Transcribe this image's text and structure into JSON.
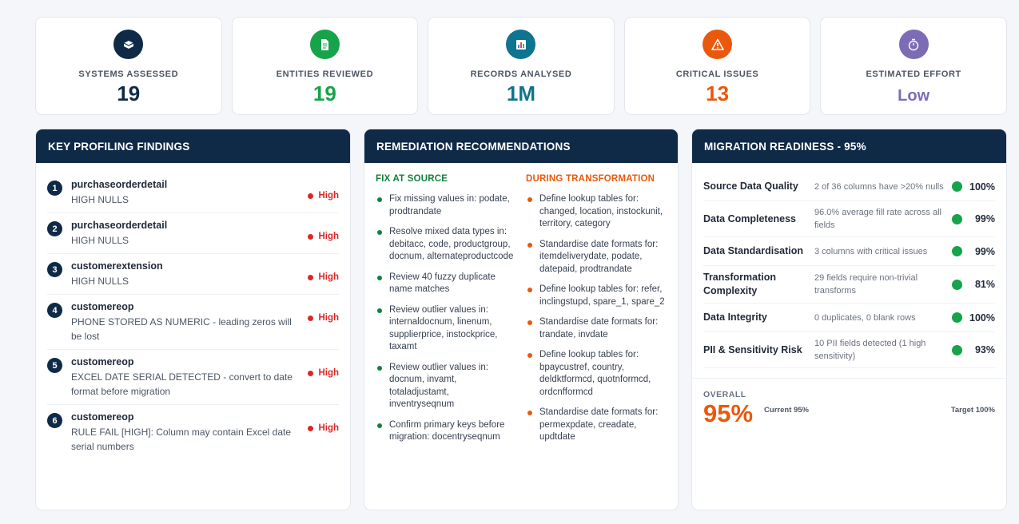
{
  "kpis": [
    {
      "label": "SYSTEMS ASSESSED",
      "value": "19",
      "color": "#0f2a47",
      "icon": "box-icon",
      "icon_bg": "#0f2a47"
    },
    {
      "label": "ENTITIES REVIEWED",
      "value": "19",
      "color": "#16a34a",
      "icon": "document-icon",
      "icon_bg": "#16a34a"
    },
    {
      "label": "RECORDS ANALYSED",
      "value": "1M",
      "color": "#0e7490",
      "icon": "bar-chart-icon",
      "icon_bg": "#0e7490"
    },
    {
      "label": "CRITICAL ISSUES",
      "value": "13",
      "color": "#ea580c",
      "icon": "warning-icon",
      "icon_bg": "#ea580c"
    },
    {
      "label": "ESTIMATED EFFORT",
      "value": "Low",
      "color": "#7c6bb5",
      "icon": "stopwatch-icon",
      "icon_bg": "#7c6bb5"
    }
  ],
  "findings": {
    "title": "KEY PROFILING FINDINGS",
    "items": [
      {
        "num": "1",
        "title": "purchaseorderdetail",
        "desc": "HIGH NULLS",
        "severity": "High"
      },
      {
        "num": "2",
        "title": "purchaseorderdetail",
        "desc": "HIGH NULLS",
        "severity": "High"
      },
      {
        "num": "3",
        "title": "customerextension",
        "desc": "HIGH NULLS",
        "severity": "High"
      },
      {
        "num": "4",
        "title": "customereop",
        "desc": "PHONE STORED AS NUMERIC - leading zeros will be lost",
        "severity": "High"
      },
      {
        "num": "5",
        "title": "customereop",
        "desc": "EXCEL DATE SERIAL DETECTED - convert to date format before migration",
        "severity": "High"
      },
      {
        "num": "6",
        "title": "customereop",
        "desc": "RULE FAIL [HIGH]: Column may contain Excel date serial numbers",
        "severity": "High"
      }
    ]
  },
  "remediation": {
    "title": "REMEDIATION RECOMMENDATIONS",
    "fix_at_source": {
      "heading": "FIX AT SOURCE",
      "color": "#15803d",
      "items": [
        "Fix missing values in: podate, prodtrandate",
        "Resolve mixed data types in: debitacc, code, productgroup, docnum, alternateproductcode",
        "Review 40 fuzzy duplicate name matches",
        "Review outlier values in: internaldocnum, linenum, supplierprice, instockprice, taxamt",
        "Review outlier values in: docnum, invamt, totaladjustamt, inventryseqnum",
        "Confirm primary keys before migration: docentryseqnum"
      ]
    },
    "during_transformation": {
      "heading": "DURING TRANSFORMATION",
      "color": "#ea580c",
      "items": [
        "Define lookup tables for: changed, location, instockunit, territory, category",
        "Standardise date formats for: itemdeliverydate, podate, datepaid, prodtrandate",
        "Define lookup tables for: refer, inclingstupd, spare_1, spare_2",
        "Standardise date formats for: trandate, invdate",
        "Define lookup tables for: bpaycustref, country, deldktformcd, quotnformcd, ordcnfformcd",
        "Standardise date formats for: permexpdate, creadate, updtdate"
      ]
    }
  },
  "readiness": {
    "title": "MIGRATION READINESS - 95%",
    "rows": [
      {
        "name": "Source Data Quality",
        "desc": "2 of 36 columns have >20% nulls",
        "pct": "100%"
      },
      {
        "name": "Data Completeness",
        "desc": "96.0% average fill rate across all fields",
        "pct": "99%"
      },
      {
        "name": "Data Standardisation",
        "desc": "3 columns with critical issues",
        "pct": "99%"
      },
      {
        "name": "Transformation Complexity",
        "desc": "29 fields require non-trivial transforms",
        "pct": "81%"
      },
      {
        "name": "Data Integrity",
        "desc": "0 duplicates, 0 blank rows",
        "pct": "100%"
      },
      {
        "name": "PII & Sensitivity Risk",
        "desc": "10 PII fields detected (1 high sensitivity)",
        "pct": "93%"
      }
    ],
    "overall_label": "OVERALL",
    "overall_value": "95%",
    "current": "Current 95%",
    "target": "Target 100%",
    "status_color": "#16a34a"
  }
}
